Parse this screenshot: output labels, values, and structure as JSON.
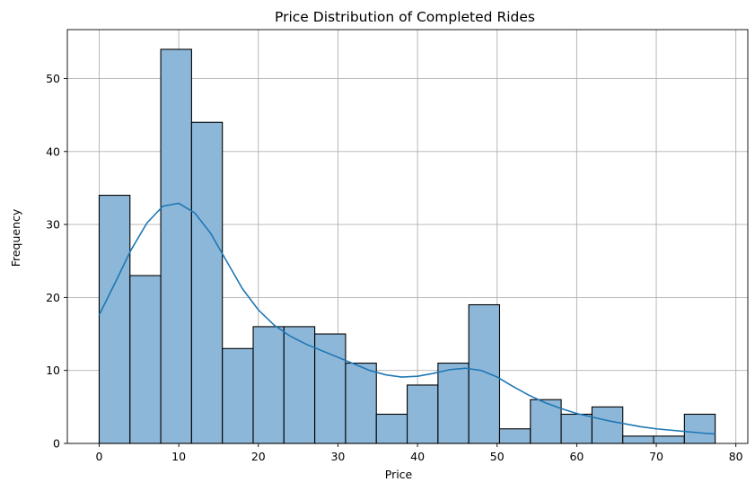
{
  "chart_data": {
    "type": "bar",
    "title": "Price Distribution of Completed Rides",
    "xlabel": "Price",
    "ylabel": "Frequency",
    "xlim": [
      -4,
      81.5
    ],
    "ylim": [
      0,
      56.7
    ],
    "grid": true,
    "xticks": [
      0,
      10,
      20,
      30,
      40,
      50,
      60,
      70,
      80
    ],
    "yticks": [
      0,
      10,
      20,
      30,
      40,
      50
    ],
    "bins": [
      {
        "x0": 0.0,
        "x1": 3.87,
        "count": 34
      },
      {
        "x0": 3.87,
        "x1": 7.74,
        "count": 23
      },
      {
        "x0": 7.74,
        "x1": 11.61,
        "count": 54
      },
      {
        "x0": 11.61,
        "x1": 15.48,
        "count": 44
      },
      {
        "x0": 15.48,
        "x1": 19.35,
        "count": 13
      },
      {
        "x0": 19.35,
        "x1": 23.22,
        "count": 16
      },
      {
        "x0": 23.22,
        "x1": 27.09,
        "count": 16
      },
      {
        "x0": 27.09,
        "x1": 30.96,
        "count": 15
      },
      {
        "x0": 30.96,
        "x1": 34.83,
        "count": 11
      },
      {
        "x0": 34.83,
        "x1": 38.7,
        "count": 4
      },
      {
        "x0": 38.7,
        "x1": 42.57,
        "count": 8
      },
      {
        "x0": 42.57,
        "x1": 46.44,
        "count": 11
      },
      {
        "x0": 46.44,
        "x1": 50.31,
        "count": 19
      },
      {
        "x0": 50.31,
        "x1": 54.18,
        "count": 2
      },
      {
        "x0": 54.18,
        "x1": 58.05,
        "count": 6
      },
      {
        "x0": 58.05,
        "x1": 61.92,
        "count": 4
      },
      {
        "x0": 61.92,
        "x1": 65.79,
        "count": 5
      },
      {
        "x0": 65.79,
        "x1": 69.66,
        "count": 1
      },
      {
        "x0": 69.66,
        "x1": 73.53,
        "count": 1
      },
      {
        "x0": 73.53,
        "x1": 77.4,
        "count": 4
      }
    ],
    "kde": {
      "x": [
        0,
        2,
        4,
        6,
        8,
        10,
        12,
        14,
        16,
        18,
        20,
        22,
        24,
        26,
        28,
        30,
        32,
        34,
        36,
        38,
        40,
        42,
        44,
        46,
        48,
        50,
        52,
        54,
        56,
        58,
        60,
        62,
        64,
        66,
        68,
        70,
        72,
        74,
        76,
        77.4
      ],
      "y": [
        17.6,
        22.0,
        26.5,
        30.2,
        32.5,
        32.9,
        31.6,
        28.8,
        25.0,
        21.2,
        18.3,
        16.2,
        14.7,
        13.6,
        12.7,
        11.8,
        10.9,
        10.0,
        9.4,
        9.1,
        9.2,
        9.6,
        10.1,
        10.3,
        10.0,
        9.1,
        7.8,
        6.6,
        5.6,
        4.8,
        4.1,
        3.6,
        3.1,
        2.7,
        2.3,
        2.0,
        1.8,
        1.6,
        1.4,
        1.3
      ]
    }
  }
}
